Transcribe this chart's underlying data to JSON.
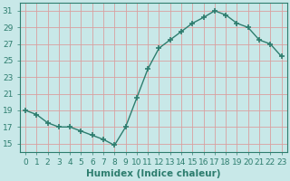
{
  "x": [
    0,
    1,
    2,
    3,
    4,
    5,
    6,
    7,
    8,
    9,
    10,
    11,
    12,
    13,
    14,
    15,
    16,
    17,
    18,
    19,
    20,
    21,
    22,
    23
  ],
  "y": [
    19.0,
    18.5,
    17.5,
    17.0,
    17.0,
    16.5,
    16.0,
    15.5,
    14.8,
    17.0,
    20.5,
    24.0,
    26.5,
    27.5,
    28.5,
    29.5,
    30.2,
    31.0,
    30.5,
    29.5,
    29.0,
    27.5,
    27.0,
    25.5
  ],
  "line_color": "#2d7d6e",
  "bg_color": "#c8e8e8",
  "grid_color": "#d9a0a0",
  "xlabel": "Humidex (Indice chaleur)",
  "ylim": [
    14,
    32
  ],
  "yticks": [
    15,
    17,
    19,
    21,
    23,
    25,
    27,
    29,
    31
  ],
  "xticks": [
    0,
    1,
    2,
    3,
    4,
    5,
    6,
    7,
    8,
    9,
    10,
    11,
    12,
    13,
    14,
    15,
    16,
    17,
    18,
    19,
    20,
    21,
    22,
    23
  ],
  "xlabel_fontsize": 7.5,
  "tick_fontsize": 6.5
}
